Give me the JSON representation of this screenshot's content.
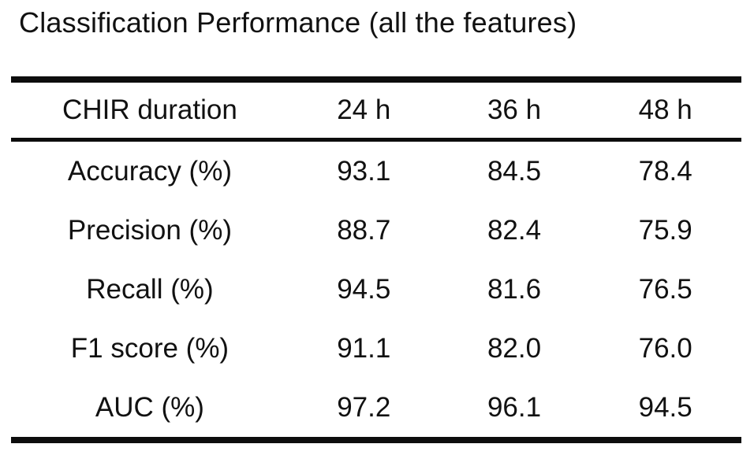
{
  "page": {
    "title": "Classification Performance (all the features)"
  },
  "table": {
    "header": {
      "label": "CHIR duration",
      "columns": [
        "24 h",
        "36 h",
        "48 h"
      ]
    },
    "rows": [
      {
        "label": "Accuracy (%)",
        "values": [
          "93.1",
          "84.5",
          "78.4"
        ]
      },
      {
        "label": "Precision (%)",
        "values": [
          "88.7",
          "82.4",
          "75.9"
        ]
      },
      {
        "label": "Recall (%)",
        "values": [
          "94.5",
          "81.6",
          "76.5"
        ]
      },
      {
        "label": "F1 score (%)",
        "values": [
          "91.1",
          "82.0",
          "76.0"
        ]
      },
      {
        "label": "AUC (%)",
        "values": [
          "97.2",
          "96.1",
          "94.5"
        ]
      }
    ]
  },
  "colors": {
    "background": "#ffffff",
    "text": "#111111",
    "rule": "#0d0d0d"
  },
  "chart_data": {
    "type": "table",
    "title": "Classification Performance (all the features)",
    "row_header": "CHIR duration",
    "categories": [
      "24 h",
      "36 h",
      "48 h"
    ],
    "series": [
      {
        "name": "Accuracy (%)",
        "values": [
          93.1,
          84.5,
          78.4
        ]
      },
      {
        "name": "Precision (%)",
        "values": [
          88.7,
          82.4,
          75.9
        ]
      },
      {
        "name": "Recall (%)",
        "values": [
          94.5,
          81.6,
          76.5
        ]
      },
      {
        "name": "F1 score (%)",
        "values": [
          91.1,
          82.0,
          76.0
        ]
      },
      {
        "name": "AUC (%)",
        "values": [
          97.2,
          96.1,
          94.5
        ]
      }
    ]
  }
}
